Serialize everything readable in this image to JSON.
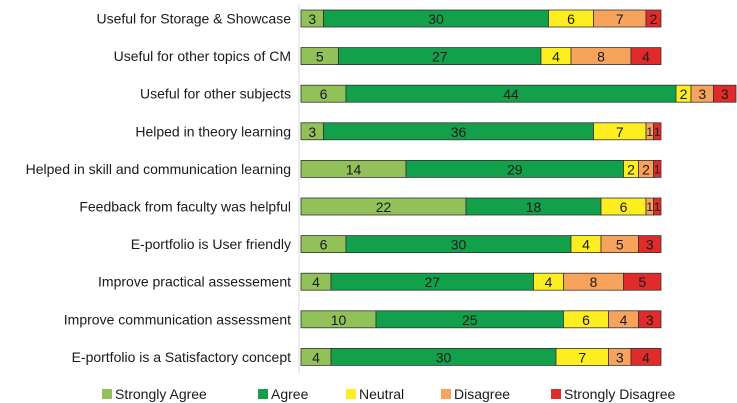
{
  "chart_data": {
    "type": "bar",
    "orientation": "horizontal",
    "stacked": true,
    "categories": [
      "Useful for Storage & Showcase",
      "Useful for other topics of CM",
      "Useful for other subjects",
      "Helped in theory learning",
      "Helped in skill and communication learning",
      "Feedback from faculty was helpful",
      "E-portfolio is User friendly",
      "Improve practical assessement",
      "Improve communication assessment",
      "E-portfolio is a Satisfactory concept"
    ],
    "series": [
      {
        "name": "Strongly Agree",
        "color": "#92c15a",
        "values": [
          3,
          5,
          6,
          3,
          14,
          22,
          6,
          4,
          10,
          4
        ]
      },
      {
        "name": "Agree",
        "color": "#12a04b",
        "values": [
          30,
          27,
          44,
          36,
          29,
          18,
          30,
          27,
          25,
          30
        ]
      },
      {
        "name": "Neutral",
        "color": "#fcee21",
        "values": [
          6,
          4,
          2,
          7,
          2,
          6,
          4,
          4,
          6,
          7
        ]
      },
      {
        "name": "Disagree",
        "color": "#f7a35c",
        "values": [
          7,
          8,
          3,
          1,
          2,
          1,
          5,
          8,
          4,
          3
        ]
      },
      {
        "name": "Strongly Disagree",
        "color": "#e02b2b",
        "values": [
          2,
          4,
          3,
          1,
          1,
          1,
          3,
          5,
          3,
          4
        ]
      }
    ],
    "title": "",
    "xlabel": "",
    "ylabel": "",
    "legend": "bottom"
  }
}
